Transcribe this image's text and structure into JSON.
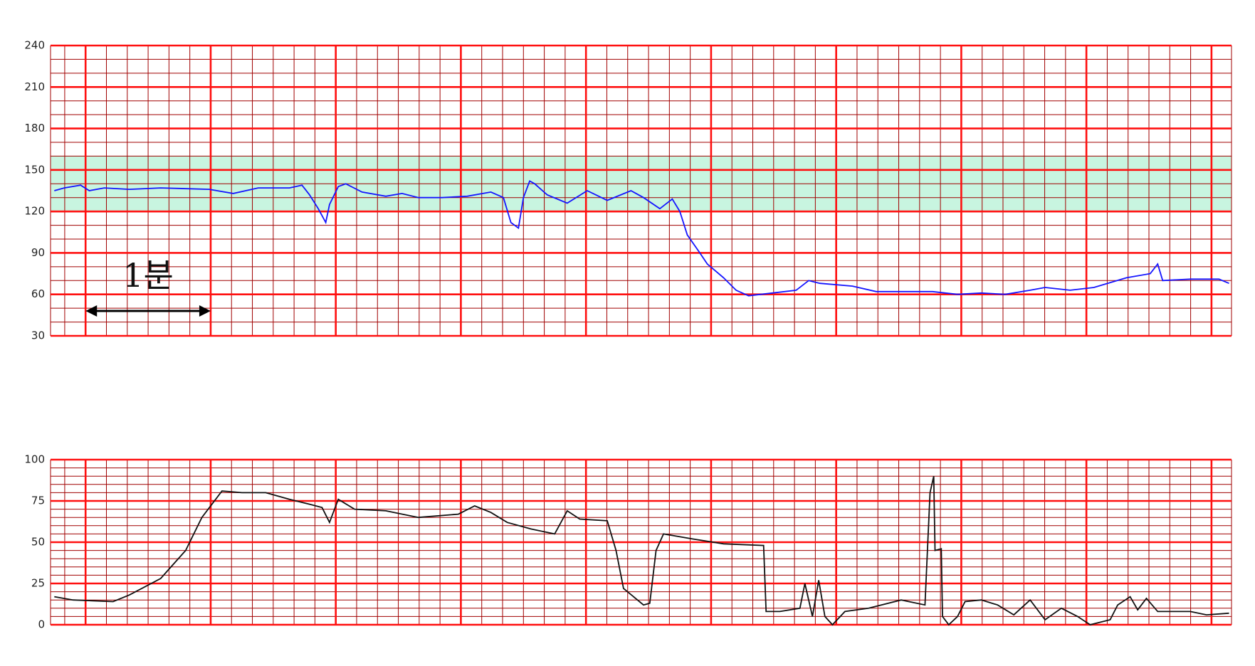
{
  "chart_data": [
    {
      "type": "line",
      "color": "#1414ff",
      "annotation": "1분",
      "band": [
        120,
        160
      ],
      "band_color": "#c8f5e0",
      "xlim": [
        0.72,
        10.16
      ],
      "xticks": [
        1,
        2,
        3,
        4,
        5,
        6,
        7,
        8,
        9,
        10
      ],
      "ylim": [
        30,
        240
      ],
      "yticks": [
        30,
        60,
        90,
        120,
        150,
        180,
        210,
        240
      ],
      "x": [
        0.75,
        0.83,
        0.96,
        1.03,
        1.15,
        1.35,
        1.6,
        1.99,
        2.18,
        2.38,
        2.63,
        2.73,
        2.79,
        2.86,
        2.92,
        2.95,
        3.02,
        3.08,
        3.21,
        3.4,
        3.53,
        3.66,
        3.85,
        4.05,
        4.24,
        4.34,
        4.4,
        4.46,
        4.5,
        4.55,
        4.59,
        4.69,
        4.85,
        5.01,
        5.17,
        5.36,
        5.46,
        5.59,
        5.69,
        5.75,
        5.81,
        5.91,
        5.97,
        6.1,
        6.2,
        6.3,
        6.49,
        6.68,
        6.78,
        6.87,
        7.13,
        7.32,
        7.77,
        7.97,
        8.16,
        8.35,
        8.55,
        8.67,
        8.87,
        9.06,
        9.32,
        9.51,
        9.57,
        9.61,
        9.83,
        10.06,
        10.14
      ],
      "values": [
        135,
        137,
        139,
        135,
        137,
        136,
        137,
        136,
        133,
        137,
        137,
        139,
        132,
        122,
        112,
        125,
        138,
        140,
        134,
        131,
        133,
        130,
        130,
        131,
        134,
        130,
        112,
        108,
        130,
        142,
        140,
        132,
        126,
        135,
        128,
        135,
        130,
        122,
        129,
        120,
        103,
        90,
        82,
        72,
        63,
        59,
        61,
        63,
        70,
        68,
        66,
        62,
        62,
        60,
        61,
        60,
        63,
        65,
        63,
        65,
        72,
        75,
        82,
        70,
        71,
        71,
        68
      ]
    },
    {
      "type": "line",
      "color": "#111111",
      "xlim": [
        0.72,
        10.16
      ],
      "xticks": [
        1,
        2,
        3,
        4,
        5,
        6,
        7,
        8,
        9,
        10
      ],
      "ylim": [
        0,
        100
      ],
      "yticks": [
        0,
        25,
        50,
        75,
        100
      ],
      "x": [
        0.75,
        0.9,
        1.22,
        1.35,
        1.6,
        1.8,
        1.93,
        2.09,
        2.25,
        2.44,
        2.63,
        2.79,
        2.89,
        2.95,
        3.02,
        3.15,
        3.4,
        3.66,
        3.98,
        4.11,
        4.24,
        4.37,
        4.56,
        4.75,
        4.85,
        4.95,
        5.17,
        5.24,
        5.3,
        5.46,
        5.51,
        5.56,
        5.62,
        5.85,
        6.1,
        6.42,
        6.44,
        6.55,
        6.71,
        6.75,
        6.81,
        6.86,
        6.91,
        6.97,
        7.07,
        7.26,
        7.52,
        7.71,
        7.75,
        7.78,
        7.79,
        7.84,
        7.85,
        7.9,
        7.97,
        8.03,
        8.16,
        8.29,
        8.42,
        8.55,
        8.67,
        8.8,
        8.93,
        9.03,
        9.19,
        9.25,
        9.35,
        9.41,
        9.48,
        9.57,
        9.83,
        9.96,
        10.14
      ],
      "values": [
        17,
        15,
        14,
        18,
        28,
        45,
        65,
        81,
        80,
        80,
        76,
        73,
        71,
        62,
        76,
        70,
        69,
        65,
        67,
        72,
        68,
        62,
        58,
        55,
        69,
        64,
        63,
        45,
        22,
        12,
        13,
        45,
        55,
        52,
        49,
        48,
        8,
        8,
        10,
        25,
        5,
        27,
        5,
        0,
        8,
        10,
        15,
        12,
        80,
        90,
        45,
        46,
        5,
        0,
        5,
        14,
        15,
        12,
        6,
        15,
        3,
        10,
        5,
        0,
        3,
        12,
        17,
        9,
        16,
        8,
        8,
        6,
        7
      ]
    }
  ]
}
